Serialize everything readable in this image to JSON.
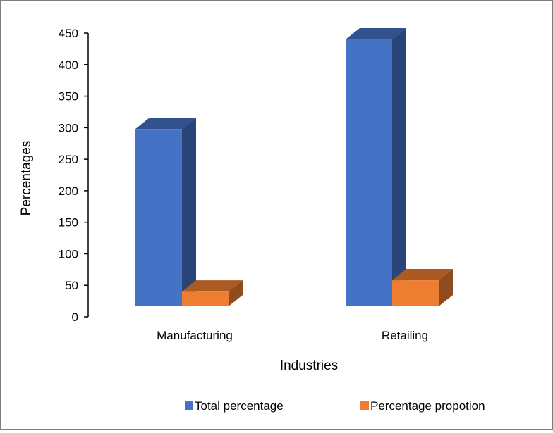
{
  "chart_data": {
    "type": "bar",
    "title": "",
    "xlabel": "Industries",
    "ylabel": "Percentages",
    "categories": [
      "Manufacturing",
      "Retailing"
    ],
    "series": [
      {
        "name": "Total percentage",
        "values": [
          298,
          440
        ],
        "color": "#4472c4"
      },
      {
        "name": "Percentage propotion",
        "values": [
          40,
          58
        ],
        "color": "#ed7d31"
      }
    ],
    "ylim": [
      0,
      450
    ],
    "yticks": [
      "0",
      "50",
      "100",
      "150",
      "200",
      "250",
      "300",
      "350",
      "400",
      "450"
    ],
    "grid": false,
    "three_d": true,
    "legend_position": "bottom"
  }
}
